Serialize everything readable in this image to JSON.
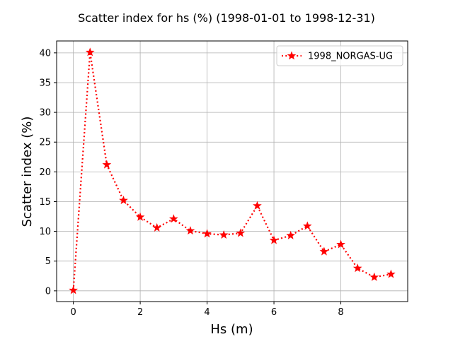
{
  "chart_data": {
    "type": "line",
    "title": "Scatter index for hs (%) (1998-01-01 to 1998-12-31)",
    "xlabel": "Hs (m)",
    "ylabel": "Scatter index (%)",
    "xlim": [
      -0.5,
      10.0
    ],
    "ylim": [
      -1.8,
      42.0
    ],
    "xticks": [
      0,
      2,
      4,
      6,
      8
    ],
    "yticks": [
      0,
      5,
      10,
      15,
      20,
      25,
      30,
      35,
      40
    ],
    "grid": true,
    "legend_position": "top-right",
    "series": [
      {
        "name": "1998_NORGAS-UG",
        "color": "#ff0000",
        "linestyle": "dotted",
        "marker": "star",
        "x": [
          0.0,
          0.5,
          1.0,
          1.5,
          2.0,
          2.5,
          3.0,
          3.5,
          4.0,
          4.5,
          5.0,
          5.5,
          6.0,
          6.5,
          7.0,
          7.5,
          8.0,
          8.5,
          9.0,
          9.5
        ],
        "y": [
          0.1,
          40.1,
          21.2,
          15.2,
          12.4,
          10.6,
          12.1,
          10.1,
          9.6,
          9.4,
          9.7,
          14.3,
          8.5,
          9.3,
          10.9,
          6.6,
          7.8,
          3.8,
          2.3,
          2.8
        ]
      }
    ]
  }
}
